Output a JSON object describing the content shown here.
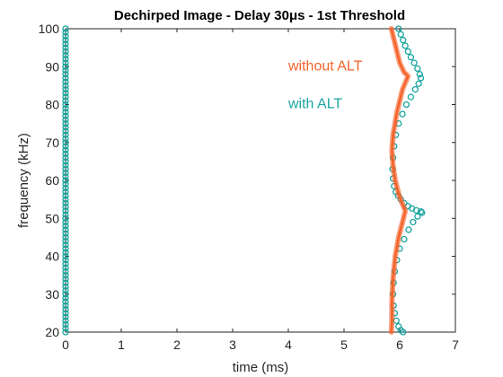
{
  "chart_data": {
    "type": "scatter",
    "title": "Dechirped Image - Delay 30μs - 1st Threshold",
    "xlabel": "time (ms)",
    "ylabel": "frequency (kHz)",
    "xlim": [
      0,
      7
    ],
    "ylim": [
      20,
      100
    ],
    "xticks": [
      "0",
      "1",
      "2",
      "3",
      "4",
      "5",
      "6",
      "7"
    ],
    "yticks": [
      "20",
      "30",
      "40",
      "50",
      "60",
      "70",
      "80",
      "90",
      "100"
    ],
    "grid": false,
    "legend": "in-plot text labels, upper right",
    "annotations": [
      {
        "text": "without ALT",
        "color": "#f4622a",
        "x": 4.0,
        "y": 89
      },
      {
        "text": "with ALT",
        "color": "#1aa5a0",
        "x": 4.0,
        "y": 79
      }
    ],
    "series": [
      {
        "name": "without ALT",
        "color": "#f4622a",
        "marker": "line",
        "x": [
          5.85,
          5.9,
          5.95,
          6.0,
          6.08,
          6.15,
          6.05,
          5.95,
          5.88,
          5.86,
          5.88,
          5.92,
          5.98,
          6.03,
          6.1,
          6.05,
          5.98,
          5.92,
          5.88,
          5.86,
          5.86,
          5.85
        ],
        "y": [
          100,
          97,
          94,
          91,
          88.5,
          87.5,
          84,
          78,
          72,
          68,
          64,
          60,
          56.5,
          54.5,
          52,
          49,
          45,
          40,
          34,
          28,
          23,
          20
        ]
      },
      {
        "name": "with ALT",
        "color": "#1aa5a0",
        "marker": "circle",
        "x": [
          0,
          0,
          0,
          0,
          0,
          0,
          0,
          0,
          0,
          0,
          0,
          0,
          0,
          0,
          0,
          0,
          0,
          0,
          0,
          0,
          0,
          0,
          0,
          0,
          0,
          0,
          0,
          0,
          0,
          0,
          0,
          0,
          0,
          0,
          0,
          0,
          0,
          0,
          0,
          0,
          0,
          0,
          0,
          0,
          0,
          0,
          0,
          0,
          0,
          0,
          0,
          0,
          0,
          0,
          0,
          0,
          0,
          0,
          0,
          0,
          0,
          0,
          0,
          0,
          0,
          0,
          0,
          0,
          0,
          0,
          0,
          0,
          0,
          0,
          0,
          0,
          0,
          0,
          0,
          0,
          0,
          5.98,
          6.02,
          6.06,
          6.1,
          6.15,
          6.2,
          6.26,
          6.32,
          6.36,
          6.38,
          6.34,
          6.28,
          6.2,
          6.12,
          6.05,
          5.98,
          5.93,
          5.9,
          5.88,
          5.87,
          5.88,
          5.9,
          5.93,
          5.97,
          6.02,
          6.08,
          6.15,
          6.22,
          6.3,
          6.38,
          6.4,
          6.32,
          6.24,
          6.16,
          6.08,
          6.0,
          5.95,
          5.91,
          5.89,
          5.88,
          5.89,
          5.91,
          5.94,
          5.98,
          6.02,
          6.06
        ],
        "y": [
          20,
          21,
          22,
          23,
          24,
          25,
          26,
          27,
          28,
          29,
          30,
          31,
          32,
          33,
          34,
          35,
          36,
          37,
          38,
          39,
          40,
          41,
          42,
          43,
          44,
          45,
          46,
          47,
          48,
          49,
          50,
          51,
          52,
          53,
          54,
          55,
          56,
          57,
          58,
          59,
          60,
          61,
          62,
          63,
          64,
          65,
          66,
          67,
          68,
          69,
          70,
          71,
          72,
          73,
          74,
          75,
          76,
          77,
          78,
          79,
          80,
          81,
          82,
          83,
          84,
          85,
          86,
          87,
          88,
          89,
          90,
          91,
          92,
          93,
          94,
          95,
          96,
          97,
          98,
          99,
          100,
          100,
          98.5,
          97,
          95.5,
          94,
          92.5,
          91,
          89.5,
          88,
          87,
          85.5,
          84,
          82,
          80,
          77.5,
          75,
          72,
          69,
          66,
          63,
          60.5,
          58.5,
          57,
          56,
          55,
          54,
          53.2,
          52.6,
          52.1,
          51.8,
          51.5,
          50.5,
          49,
          47,
          44.5,
          42,
          39,
          36,
          33,
          30,
          27,
          25,
          23,
          21.5,
          20.5,
          20
        ]
      }
    ]
  }
}
